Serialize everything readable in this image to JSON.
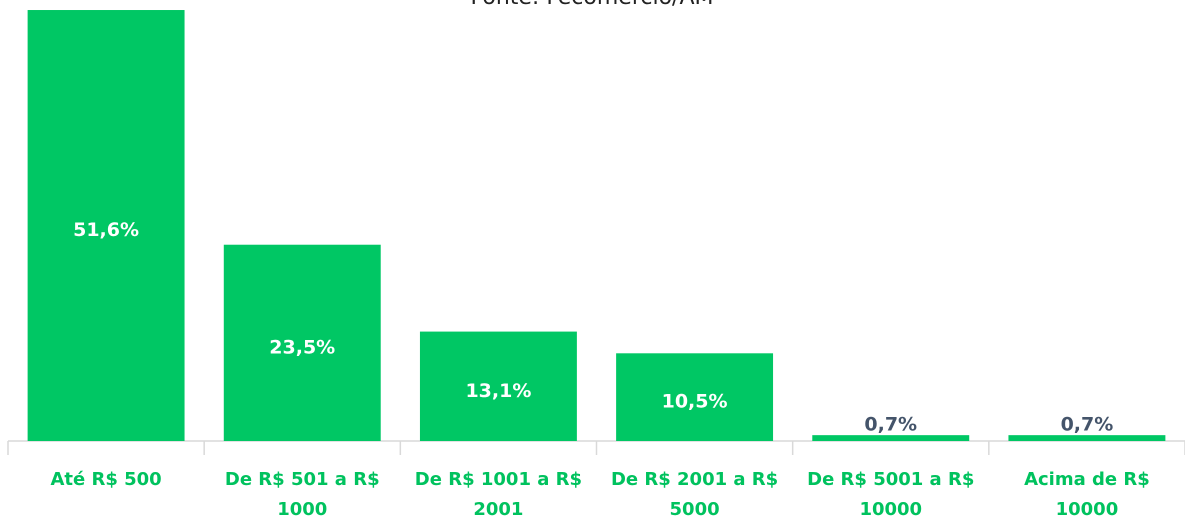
{
  "chart_data": {
    "type": "bar",
    "title": "Fonte: Fecomércio/AM",
    "categories": [
      "Até R$ 500",
      "De R$ 501 a R$ 1000",
      "De R$ 1001 a R$ 2001",
      "De R$ 2001 a R$ 5000",
      "De R$ 5001 a R$ 10000",
      "Acima de R$ 10000"
    ],
    "values": [
      51.6,
      23.5,
      13.1,
      10.5,
      0.7,
      0.7
    ],
    "value_labels": [
      "51,6%",
      "23,5%",
      "13,1%",
      "10,5%",
      "0,7%",
      "0,7%"
    ],
    "color": "#00c764",
    "ylim": [
      0,
      52.8
    ]
  }
}
